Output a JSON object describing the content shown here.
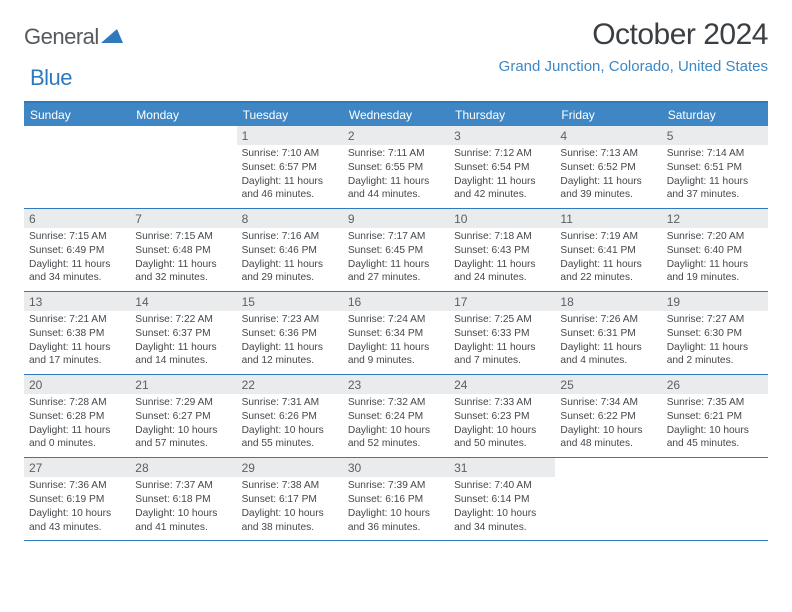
{
  "logo": {
    "text1": "General",
    "text2": "Blue"
  },
  "title": "October 2024",
  "location": "Grand Junction, Colorado, United States",
  "colors": {
    "header_bg": "#3e87c4",
    "border": "#2f7abf",
    "daynum_bg": "#e9ebec",
    "text": "#44484c",
    "location": "#3e87c4"
  },
  "weekdays": [
    "Sunday",
    "Monday",
    "Tuesday",
    "Wednesday",
    "Thursday",
    "Friday",
    "Saturday"
  ],
  "weeks": [
    [
      {
        "day": "",
        "lines": []
      },
      {
        "day": "",
        "lines": []
      },
      {
        "day": "1",
        "lines": [
          "Sunrise: 7:10 AM",
          "Sunset: 6:57 PM",
          "Daylight: 11 hours and 46 minutes."
        ]
      },
      {
        "day": "2",
        "lines": [
          "Sunrise: 7:11 AM",
          "Sunset: 6:55 PM",
          "Daylight: 11 hours and 44 minutes."
        ]
      },
      {
        "day": "3",
        "lines": [
          "Sunrise: 7:12 AM",
          "Sunset: 6:54 PM",
          "Daylight: 11 hours and 42 minutes."
        ]
      },
      {
        "day": "4",
        "lines": [
          "Sunrise: 7:13 AM",
          "Sunset: 6:52 PM",
          "Daylight: 11 hours and 39 minutes."
        ]
      },
      {
        "day": "5",
        "lines": [
          "Sunrise: 7:14 AM",
          "Sunset: 6:51 PM",
          "Daylight: 11 hours and 37 minutes."
        ]
      }
    ],
    [
      {
        "day": "6",
        "lines": [
          "Sunrise: 7:15 AM",
          "Sunset: 6:49 PM",
          "Daylight: 11 hours and 34 minutes."
        ]
      },
      {
        "day": "7",
        "lines": [
          "Sunrise: 7:15 AM",
          "Sunset: 6:48 PM",
          "Daylight: 11 hours and 32 minutes."
        ]
      },
      {
        "day": "8",
        "lines": [
          "Sunrise: 7:16 AM",
          "Sunset: 6:46 PM",
          "Daylight: 11 hours and 29 minutes."
        ]
      },
      {
        "day": "9",
        "lines": [
          "Sunrise: 7:17 AM",
          "Sunset: 6:45 PM",
          "Daylight: 11 hours and 27 minutes."
        ]
      },
      {
        "day": "10",
        "lines": [
          "Sunrise: 7:18 AM",
          "Sunset: 6:43 PM",
          "Daylight: 11 hours and 24 minutes."
        ]
      },
      {
        "day": "11",
        "lines": [
          "Sunrise: 7:19 AM",
          "Sunset: 6:41 PM",
          "Daylight: 11 hours and 22 minutes."
        ]
      },
      {
        "day": "12",
        "lines": [
          "Sunrise: 7:20 AM",
          "Sunset: 6:40 PM",
          "Daylight: 11 hours and 19 minutes."
        ]
      }
    ],
    [
      {
        "day": "13",
        "lines": [
          "Sunrise: 7:21 AM",
          "Sunset: 6:38 PM",
          "Daylight: 11 hours and 17 minutes."
        ]
      },
      {
        "day": "14",
        "lines": [
          "Sunrise: 7:22 AM",
          "Sunset: 6:37 PM",
          "Daylight: 11 hours and 14 minutes."
        ]
      },
      {
        "day": "15",
        "lines": [
          "Sunrise: 7:23 AM",
          "Sunset: 6:36 PM",
          "Daylight: 11 hours and 12 minutes."
        ]
      },
      {
        "day": "16",
        "lines": [
          "Sunrise: 7:24 AM",
          "Sunset: 6:34 PM",
          "Daylight: 11 hours and 9 minutes."
        ]
      },
      {
        "day": "17",
        "lines": [
          "Sunrise: 7:25 AM",
          "Sunset: 6:33 PM",
          "Daylight: 11 hours and 7 minutes."
        ]
      },
      {
        "day": "18",
        "lines": [
          "Sunrise: 7:26 AM",
          "Sunset: 6:31 PM",
          "Daylight: 11 hours and 4 minutes."
        ]
      },
      {
        "day": "19",
        "lines": [
          "Sunrise: 7:27 AM",
          "Sunset: 6:30 PM",
          "Daylight: 11 hours and 2 minutes."
        ]
      }
    ],
    [
      {
        "day": "20",
        "lines": [
          "Sunrise: 7:28 AM",
          "Sunset: 6:28 PM",
          "Daylight: 11 hours and 0 minutes."
        ]
      },
      {
        "day": "21",
        "lines": [
          "Sunrise: 7:29 AM",
          "Sunset: 6:27 PM",
          "Daylight: 10 hours and 57 minutes."
        ]
      },
      {
        "day": "22",
        "lines": [
          "Sunrise: 7:31 AM",
          "Sunset: 6:26 PM",
          "Daylight: 10 hours and 55 minutes."
        ]
      },
      {
        "day": "23",
        "lines": [
          "Sunrise: 7:32 AM",
          "Sunset: 6:24 PM",
          "Daylight: 10 hours and 52 minutes."
        ]
      },
      {
        "day": "24",
        "lines": [
          "Sunrise: 7:33 AM",
          "Sunset: 6:23 PM",
          "Daylight: 10 hours and 50 minutes."
        ]
      },
      {
        "day": "25",
        "lines": [
          "Sunrise: 7:34 AM",
          "Sunset: 6:22 PM",
          "Daylight: 10 hours and 48 minutes."
        ]
      },
      {
        "day": "26",
        "lines": [
          "Sunrise: 7:35 AM",
          "Sunset: 6:21 PM",
          "Daylight: 10 hours and 45 minutes."
        ]
      }
    ],
    [
      {
        "day": "27",
        "lines": [
          "Sunrise: 7:36 AM",
          "Sunset: 6:19 PM",
          "Daylight: 10 hours and 43 minutes."
        ]
      },
      {
        "day": "28",
        "lines": [
          "Sunrise: 7:37 AM",
          "Sunset: 6:18 PM",
          "Daylight: 10 hours and 41 minutes."
        ]
      },
      {
        "day": "29",
        "lines": [
          "Sunrise: 7:38 AM",
          "Sunset: 6:17 PM",
          "Daylight: 10 hours and 38 minutes."
        ]
      },
      {
        "day": "30",
        "lines": [
          "Sunrise: 7:39 AM",
          "Sunset: 6:16 PM",
          "Daylight: 10 hours and 36 minutes."
        ]
      },
      {
        "day": "31",
        "lines": [
          "Sunrise: 7:40 AM",
          "Sunset: 6:14 PM",
          "Daylight: 10 hours and 34 minutes."
        ]
      },
      {
        "day": "",
        "lines": []
      },
      {
        "day": "",
        "lines": []
      }
    ]
  ]
}
